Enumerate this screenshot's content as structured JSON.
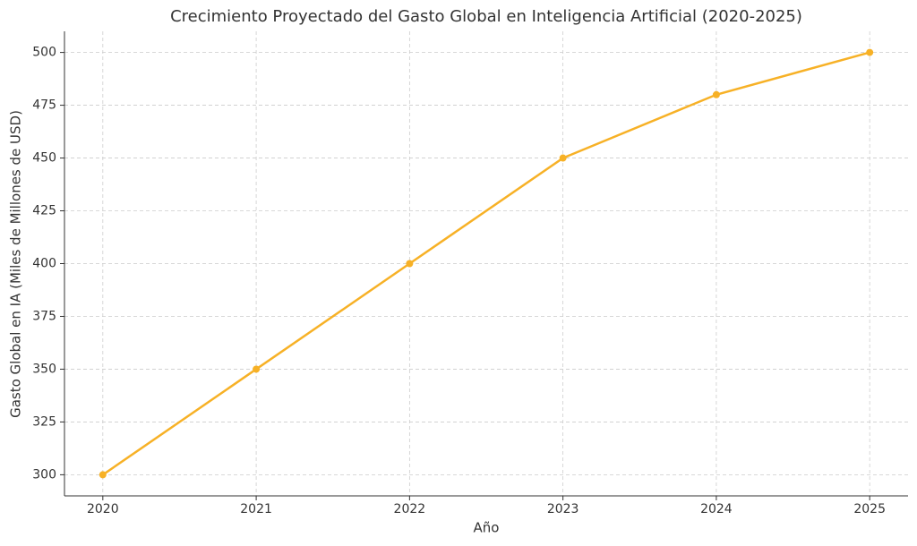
{
  "chart_data": {
    "type": "line",
    "title": "Crecimiento Proyectado del Gasto Global en Inteligencia Artificial (2020-2025)",
    "x_label": "Año",
    "y_label": "Gasto Global en IA (Miles de Millones de USD)",
    "x": [
      2020,
      2021,
      2022,
      2023,
      2024,
      2025
    ],
    "series": [
      {
        "name": "Gasto Global en IA",
        "color": "#f7b126",
        "values": [
          300,
          350,
          400,
          450,
          480,
          500
        ]
      }
    ],
    "xlim": [
      2019.75,
      2025.25
    ],
    "xticks": [
      2020,
      2021,
      2022,
      2023,
      2024,
      2025
    ],
    "ylim": [
      290,
      510
    ],
    "yticks": [
      300,
      325,
      350,
      375,
      400,
      425,
      450,
      475,
      500
    ],
    "grid": true
  }
}
